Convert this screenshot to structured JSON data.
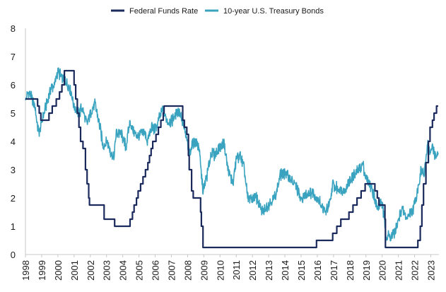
{
  "chart_data": {
    "type": "line",
    "legend": {
      "placement": "top-center",
      "entries": [
        {
          "label": "Federal Funds Rate",
          "color": "#1b2a5c"
        },
        {
          "label": "10-year U.S. Treasury Bonds",
          "color": "#3aa3bf"
        }
      ]
    },
    "xlim": [
      1998,
      2023.5
    ],
    "ylim": [
      0,
      8
    ],
    "x_ticks": [
      "1998",
      "1999",
      "2000",
      "2001",
      "2002",
      "2003",
      "2004",
      "2005",
      "2006",
      "2007",
      "2008",
      "2009",
      "2010",
      "2011",
      "2012",
      "2013",
      "2014",
      "2015",
      "2016",
      "2017",
      "2018",
      "2019",
      "2020",
      "2021",
      "2022",
      "2023"
    ],
    "y_ticks": [
      "0",
      "1",
      "2",
      "3",
      "4",
      "5",
      "6",
      "7",
      "8"
    ],
    "grid": false,
    "series": [
      {
        "name": "Federal Funds Rate",
        "color": "#1b2a5c",
        "step": true,
        "points": [
          [
            1998.0,
            5.5
          ],
          [
            1998.75,
            5.25
          ],
          [
            1998.85,
            5.0
          ],
          [
            1998.95,
            4.75
          ],
          [
            1999.45,
            5.0
          ],
          [
            1999.65,
            5.25
          ],
          [
            1999.9,
            5.5
          ],
          [
            2000.1,
            5.75
          ],
          [
            2000.25,
            6.0
          ],
          [
            2000.4,
            6.5
          ],
          [
            2001.0,
            6.0
          ],
          [
            2001.1,
            5.5
          ],
          [
            2001.2,
            5.0
          ],
          [
            2001.3,
            4.5
          ],
          [
            2001.4,
            4.0
          ],
          [
            2001.55,
            3.75
          ],
          [
            2001.7,
            3.0
          ],
          [
            2001.8,
            2.5
          ],
          [
            2001.9,
            2.0
          ],
          [
            2001.95,
            1.75
          ],
          [
            2002.85,
            1.25
          ],
          [
            2003.5,
            1.0
          ],
          [
            2004.45,
            1.25
          ],
          [
            2004.6,
            1.5
          ],
          [
            2004.7,
            1.75
          ],
          [
            2004.85,
            2.0
          ],
          [
            2004.95,
            2.25
          ],
          [
            2005.1,
            2.5
          ],
          [
            2005.25,
            2.75
          ],
          [
            2005.4,
            3.0
          ],
          [
            2005.55,
            3.25
          ],
          [
            2005.65,
            3.5
          ],
          [
            2005.75,
            3.75
          ],
          [
            2005.85,
            4.0
          ],
          [
            2006.05,
            4.25
          ],
          [
            2006.2,
            4.5
          ],
          [
            2006.35,
            4.75
          ],
          [
            2006.5,
            5.0
          ],
          [
            2006.55,
            5.25
          ],
          [
            2007.7,
            4.75
          ],
          [
            2007.8,
            4.5
          ],
          [
            2007.95,
            4.25
          ],
          [
            2008.05,
            3.5
          ],
          [
            2008.1,
            3.0
          ],
          [
            2008.25,
            2.25
          ],
          [
            2008.35,
            2.0
          ],
          [
            2008.8,
            1.5
          ],
          [
            2008.85,
            1.0
          ],
          [
            2008.95,
            0.25
          ],
          [
            2015.95,
            0.5
          ],
          [
            2016.95,
            0.75
          ],
          [
            2017.2,
            1.0
          ],
          [
            2017.45,
            1.25
          ],
          [
            2017.95,
            1.5
          ],
          [
            2018.2,
            1.75
          ],
          [
            2018.45,
            2.0
          ],
          [
            2018.7,
            2.25
          ],
          [
            2018.95,
            2.5
          ],
          [
            2019.55,
            2.25
          ],
          [
            2019.7,
            2.0
          ],
          [
            2019.8,
            1.75
          ],
          [
            2020.17,
            1.25
          ],
          [
            2020.2,
            0.25
          ],
          [
            2022.2,
            0.5
          ],
          [
            2022.35,
            1.0
          ],
          [
            2022.45,
            1.75
          ],
          [
            2022.55,
            2.5
          ],
          [
            2022.7,
            3.25
          ],
          [
            2022.85,
            4.0
          ],
          [
            2022.95,
            4.5
          ],
          [
            2023.1,
            4.75
          ],
          [
            2023.2,
            5.0
          ],
          [
            2023.35,
            5.25
          ],
          [
            2023.45,
            5.25
          ]
        ]
      },
      {
        "name": "10-year U.S. Treasury Bonds",
        "color": "#3aa3bf",
        "step": false,
        "points": [
          [
            1998.0,
            5.5
          ],
          [
            1998.2,
            5.7
          ],
          [
            1998.4,
            5.5
          ],
          [
            1998.6,
            5.2
          ],
          [
            1998.75,
            4.5
          ],
          [
            1998.85,
            4.3
          ],
          [
            1999.0,
            4.7
          ],
          [
            1999.3,
            5.3
          ],
          [
            1999.6,
            5.9
          ],
          [
            1999.8,
            6.0
          ],
          [
            2000.0,
            6.5
          ],
          [
            2000.2,
            6.3
          ],
          [
            2000.5,
            6.1
          ],
          [
            2000.8,
            5.8
          ],
          [
            2001.0,
            5.2
          ],
          [
            2001.3,
            5.0
          ],
          [
            2001.5,
            5.2
          ],
          [
            2001.8,
            4.6
          ],
          [
            2002.0,
            5.0
          ],
          [
            2002.3,
            5.3
          ],
          [
            2002.6,
            4.5
          ],
          [
            2002.8,
            3.8
          ],
          [
            2003.0,
            4.0
          ],
          [
            2003.45,
            3.4
          ],
          [
            2003.6,
            4.3
          ],
          [
            2003.9,
            4.3
          ],
          [
            2004.2,
            3.8
          ],
          [
            2004.45,
            4.7
          ],
          [
            2004.7,
            4.3
          ],
          [
            2005.0,
            4.2
          ],
          [
            2005.3,
            4.4
          ],
          [
            2005.5,
            4.0
          ],
          [
            2005.8,
            4.5
          ],
          [
            2006.0,
            4.4
          ],
          [
            2006.45,
            5.1
          ],
          [
            2006.8,
            4.7
          ],
          [
            2007.0,
            4.7
          ],
          [
            2007.4,
            5.1
          ],
          [
            2007.6,
            4.9
          ],
          [
            2007.9,
            4.2
          ],
          [
            2008.1,
            3.6
          ],
          [
            2008.4,
            4.0
          ],
          [
            2008.7,
            3.8
          ],
          [
            2008.95,
            2.2
          ],
          [
            2009.2,
            2.8
          ],
          [
            2009.45,
            3.6
          ],
          [
            2009.7,
            3.5
          ],
          [
            2009.95,
            3.8
          ],
          [
            2010.25,
            3.9
          ],
          [
            2010.5,
            3.0
          ],
          [
            2010.8,
            2.5
          ],
          [
            2011.0,
            3.4
          ],
          [
            2011.25,
            3.5
          ],
          [
            2011.5,
            3.0
          ],
          [
            2011.7,
            2.0
          ],
          [
            2012.0,
            2.0
          ],
          [
            2012.3,
            2.0
          ],
          [
            2012.55,
            1.5
          ],
          [
            2012.9,
            1.7
          ],
          [
            2013.2,
            1.9
          ],
          [
            2013.45,
            2.1
          ],
          [
            2013.7,
            2.8
          ],
          [
            2014.0,
            2.9
          ],
          [
            2014.4,
            2.6
          ],
          [
            2014.7,
            2.4
          ],
          [
            2015.0,
            1.9
          ],
          [
            2015.4,
            2.2
          ],
          [
            2015.7,
            2.2
          ],
          [
            2016.0,
            2.0
          ],
          [
            2016.5,
            1.5
          ],
          [
            2016.8,
            1.8
          ],
          [
            2016.95,
            2.5
          ],
          [
            2017.3,
            2.3
          ],
          [
            2017.7,
            2.3
          ],
          [
            2018.0,
            2.6
          ],
          [
            2018.4,
            2.9
          ],
          [
            2018.8,
            3.2
          ],
          [
            2019.0,
            2.7
          ],
          [
            2019.4,
            2.3
          ],
          [
            2019.7,
            1.6
          ],
          [
            2019.95,
            1.9
          ],
          [
            2020.15,
            1.2
          ],
          [
            2020.25,
            0.7
          ],
          [
            2020.5,
            0.6
          ],
          [
            2020.8,
            0.8
          ],
          [
            2021.2,
            1.6
          ],
          [
            2021.5,
            1.3
          ],
          [
            2021.9,
            1.6
          ],
          [
            2022.2,
            2.3
          ],
          [
            2022.4,
            3.0
          ],
          [
            2022.6,
            2.8
          ],
          [
            2022.8,
            4.0
          ],
          [
            2023.0,
            3.5
          ],
          [
            2023.1,
            3.9
          ],
          [
            2023.3,
            3.4
          ],
          [
            2023.45,
            3.6
          ]
        ]
      }
    ]
  }
}
